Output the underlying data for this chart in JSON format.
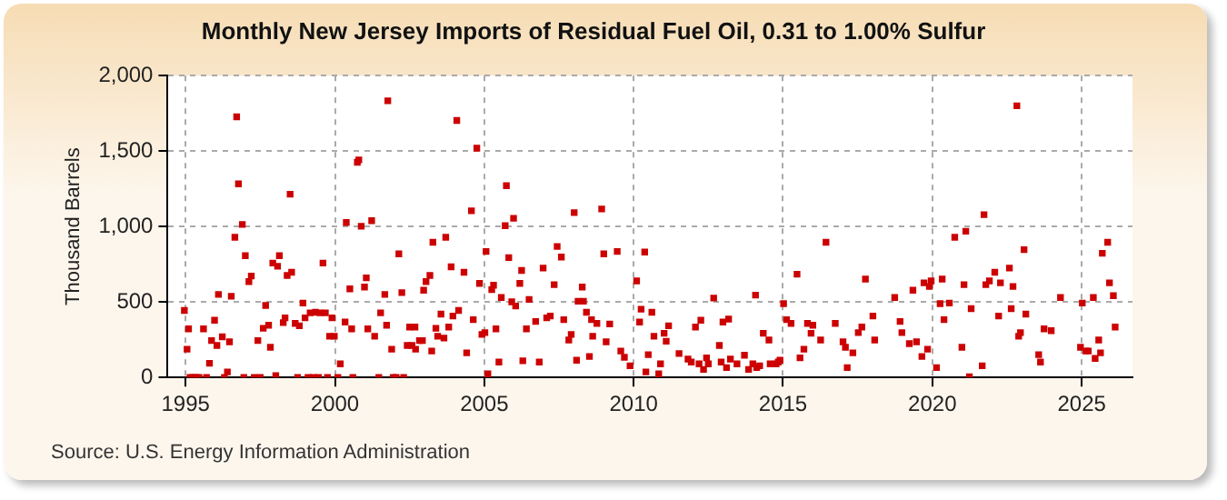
{
  "chart_data": {
    "type": "scatter",
    "title": "Monthly New Jersey Imports of Residual Fuel Oil, 0.31 to 1.00% Sulfur",
    "ylabel": "Thousand Barrels",
    "annotations": [
      "Source: U.S. Energy Information Administration"
    ],
    "marker": "square",
    "grid": true,
    "xlim": [
      1994.4,
      2026.7
    ],
    "xticks": [
      1995,
      2000,
      2005,
      2010,
      2015,
      2020,
      2025
    ],
    "ylim": [
      0,
      2000
    ],
    "yticks": [
      0,
      500,
      {
        "value": 1000,
        "label": "1,000"
      },
      {
        "value": 1500,
        "label": "1,500"
      },
      {
        "value": 2000,
        "label": "2,000"
      }
    ],
    "series": [
      {
        "color": "#cc0000",
        "x": [
          1994.96,
          1995.05,
          1995.1,
          1995.15,
          1995.25,
          1995.35,
          1995.45,
          1995.6,
          1995.7,
          1995.8,
          1995.87,
          1995.97,
          1996.05,
          1996.1,
          1996.23,
          1996.3,
          1996.4,
          1996.47,
          1996.53,
          1996.65,
          1996.71,
          1996.77,
          1996.9,
          1996.95,
          1997.0,
          1997.12,
          1997.2,
          1997.3,
          1997.42,
          1997.5,
          1997.6,
          1997.68,
          1997.78,
          1997.84,
          1997.92,
          1998.02,
          1998.08,
          1998.14,
          1998.27,
          1998.33,
          1998.4,
          1998.5,
          1998.55,
          1998.67,
          1998.75,
          1998.81,
          1998.93,
          1999.0,
          1999.1,
          1999.17,
          1999.27,
          1999.35,
          1999.45,
          1999.5,
          1999.6,
          1999.68,
          1999.75,
          1999.82,
          1999.9,
          1999.98,
          2000.1,
          2000.18,
          2000.34,
          2000.38,
          2000.5,
          2000.56,
          2000.6,
          2000.75,
          2000.8,
          2000.88,
          2000.99,
          2001.05,
          2001.1,
          2001.23,
          2001.33,
          2001.47,
          2001.53,
          2001.67,
          2001.73,
          2001.77,
          2001.9,
          2001.95,
          2002.05,
          2002.14,
          2002.24,
          2002.3,
          2002.42,
          2002.5,
          2002.58,
          2002.68,
          2002.7,
          2002.83,
          2002.93,
          2002.97,
          2003.05,
          2003.18,
          2003.24,
          2003.28,
          2003.38,
          2003.44,
          2003.55,
          2003.65,
          2003.71,
          2003.81,
          2003.89,
          2003.95,
          2004.08,
          2004.14,
          2004.32,
          2004.41,
          2004.57,
          2004.63,
          2004.75,
          2004.84,
          2004.92,
          2005.02,
          2005.06,
          2005.12,
          2005.25,
          2005.31,
          2005.39,
          2005.49,
          2005.57,
          2005.7,
          2005.74,
          2005.82,
          2005.92,
          2005.98,
          2006.05,
          2006.19,
          2006.25,
          2006.29,
          2006.41,
          2006.5,
          2006.72,
          2006.84,
          2006.97,
          2007.09,
          2007.21,
          2007.34,
          2007.44,
          2007.58,
          2007.66,
          2007.83,
          2007.91,
          2008.01,
          2008.09,
          2008.14,
          2008.28,
          2008.32,
          2008.42,
          2008.52,
          2008.59,
          2008.63,
          2008.77,
          2008.93,
          2009.0,
          2009.08,
          2009.2,
          2009.45,
          2009.57,
          2009.69,
          2009.88,
          2010.1,
          2010.2,
          2010.25,
          2010.37,
          2010.41,
          2010.49,
          2010.61,
          2010.68,
          2010.84,
          2010.9,
          2011.02,
          2011.09,
          2011.17,
          2011.52,
          2011.82,
          2011.93,
          2012.07,
          2012.19,
          2012.25,
          2012.34,
          2012.44,
          2012.5,
          2012.68,
          2012.87,
          2012.93,
          2012.99,
          2013.11,
          2013.18,
          2013.24,
          2013.46,
          2013.71,
          2013.85,
          2013.99,
          2014.08,
          2014.12,
          2014.22,
          2014.34,
          2014.53,
          2014.57,
          2014.77,
          2014.84,
          2014.9,
          2015.02,
          2015.12,
          2015.27,
          2015.47,
          2015.57,
          2015.7,
          2015.82,
          2015.94,
          2016.0,
          2016.26,
          2016.44,
          2016.75,
          2017.01,
          2017.09,
          2017.15,
          2017.34,
          2017.52,
          2017.64,
          2017.76,
          2018.01,
          2018.07,
          2018.74,
          2018.92,
          2018.98,
          2019.23,
          2019.35,
          2019.47,
          2019.65,
          2019.72,
          2019.84,
          2019.9,
          2019.96,
          2020.14,
          2020.26,
          2020.33,
          2020.39,
          2020.57,
          2020.75,
          2020.99,
          2021.06,
          2021.12,
          2021.24,
          2021.3,
          2021.67,
          2021.73,
          2021.79,
          2021.91,
          2022.09,
          2022.22,
          2022.28,
          2022.58,
          2022.64,
          2022.7,
          2022.83,
          2022.89,
          2022.95,
          2023.07,
          2023.13,
          2023.56,
          2023.62,
          2023.74,
          2023.98,
          2024.29,
          2024.96,
          2025.02,
          2025.14,
          2025.22,
          2025.39,
          2025.45,
          2025.57,
          2025.63,
          2025.69,
          2025.87,
          2025.93,
          2026.06,
          2026.12
        ],
        "values": [
          444,
          187,
          322,
          0,
          0,
          0,
          0,
          322,
          0,
          94,
          244,
          379,
          212,
          550,
          269,
          0,
          37,
          236,
          538,
          929,
          1727,
          1283,
          1014,
          0,
          807,
          635,
          672,
          0,
          244,
          0,
          326,
          477,
          346,
          200,
          758,
          12,
          737,
          807,
          363,
          395,
          676,
          1214,
          697,
          358,
          0,
          342,
          493,
          395,
          0,
          428,
          0,
          432,
          0,
          428,
          758,
          428,
          0,
          273,
          395,
          273,
          0,
          90,
          367,
          1027,
          587,
          322,
          0,
          1426,
          1442,
          1002,
          599,
          660,
          322,
          1039,
          273,
          0,
          428,
          550,
          346,
          1833,
          187,
          0,
          0,
          819,
          562,
          0,
          212,
          334,
          212,
          334,
          187,
          244,
          244,
          578,
          635,
          676,
          175,
          896,
          326,
          273,
          420,
          261,
          929,
          334,
          733,
          407,
          1703,
          444,
          697,
          163,
          1104,
          383,
          1519,
          623,
          285,
          297,
          835,
          24,
          582,
          611,
          322,
          102,
          530,
          1006,
          1271,
          794,
          501,
          1055,
          473,
          623,
          709,
          110,
          322,
          517,
          371,
          102,
          725,
          395,
          407,
          615,
          868,
          798,
          383,
          248,
          285,
          1092,
          114,
          505,
          599,
          505,
          432,
          139,
          383,
          273,
          358,
          1116,
          819,
          236,
          354,
          835,
          175,
          134,
          77,
          640,
          367,
          452,
          831,
          37,
          151,
          432,
          273,
          24,
          90,
          293,
          240,
          342,
          159,
          122,
          102,
          334,
          90,
          379,
          53,
          130,
          90,
          526,
          212,
          102,
          367,
          65,
          387,
          122,
          90,
          147,
          53,
          90,
          546,
          65,
          77,
          293,
          248,
          90,
          90,
          102,
          114,
          489,
          383,
          358,
          684,
          130,
          187,
          358,
          293,
          346,
          248,
          896,
          358,
          236,
          200,
          65,
          163,
          297,
          334,
          652,
          407,
          248,
          530,
          371,
          297,
          224,
          578,
          236,
          139,
          627,
          187,
          603,
          640,
          65,
          489,
          652,
          383,
          493,
          929,
          200,
          615,
          969,
          4,
          456,
          77,
          1079,
          615,
          640,
          697,
          407,
          627,
          725,
          456,
          603,
          1800,
          273,
          297,
          847,
          420,
          151,
          102,
          322,
          310,
          530,
          200,
          493,
          175,
          175,
          530,
          126,
          248,
          163,
          823,
          896,
          627,
          542,
          334
        ]
      }
    ]
  }
}
